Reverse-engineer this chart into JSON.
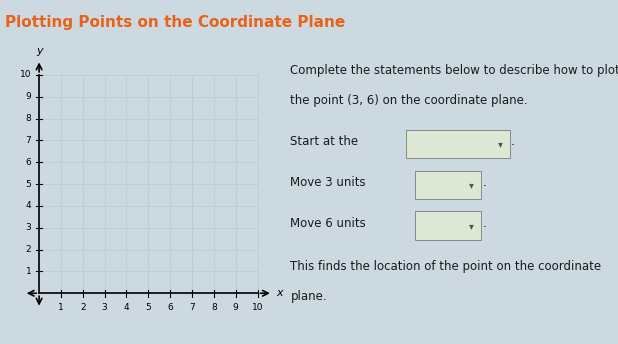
{
  "title": "Plotting Points on the Coordinate Plane",
  "title_color": "#e8621a",
  "bg_color": "#cdd9e0",
  "header_bg": "#c2d0dc",
  "grid_bg": "#ddeaf2",
  "grid_line_color": "#b8cdd8",
  "x_min": 0,
  "x_max": 10,
  "y_min": 0,
  "y_max": 10,
  "x_ticks": [
    1,
    2,
    3,
    4,
    5,
    6,
    7,
    8,
    9,
    10
  ],
  "y_ticks": [
    1,
    2,
    3,
    4,
    5,
    6,
    7,
    8,
    9,
    10
  ],
  "right_text_line1": "Complete the statements below to describe how to plot",
  "right_text_line2": "the point (3, 6) on the coordinate plane.",
  "label1": "Start at the",
  "label2": "Move 3 units",
  "label3": "Move 6 units",
  "label4": "This finds the location of the point on the coordinate",
  "label5": "plane.",
  "text_color": "#1a1a1a",
  "box_fill": "#dce8d4",
  "box_edge": "#888888",
  "axis_label_x": "x",
  "axis_label_y": "y",
  "font_size_title": 11,
  "font_size_body": 8.5
}
